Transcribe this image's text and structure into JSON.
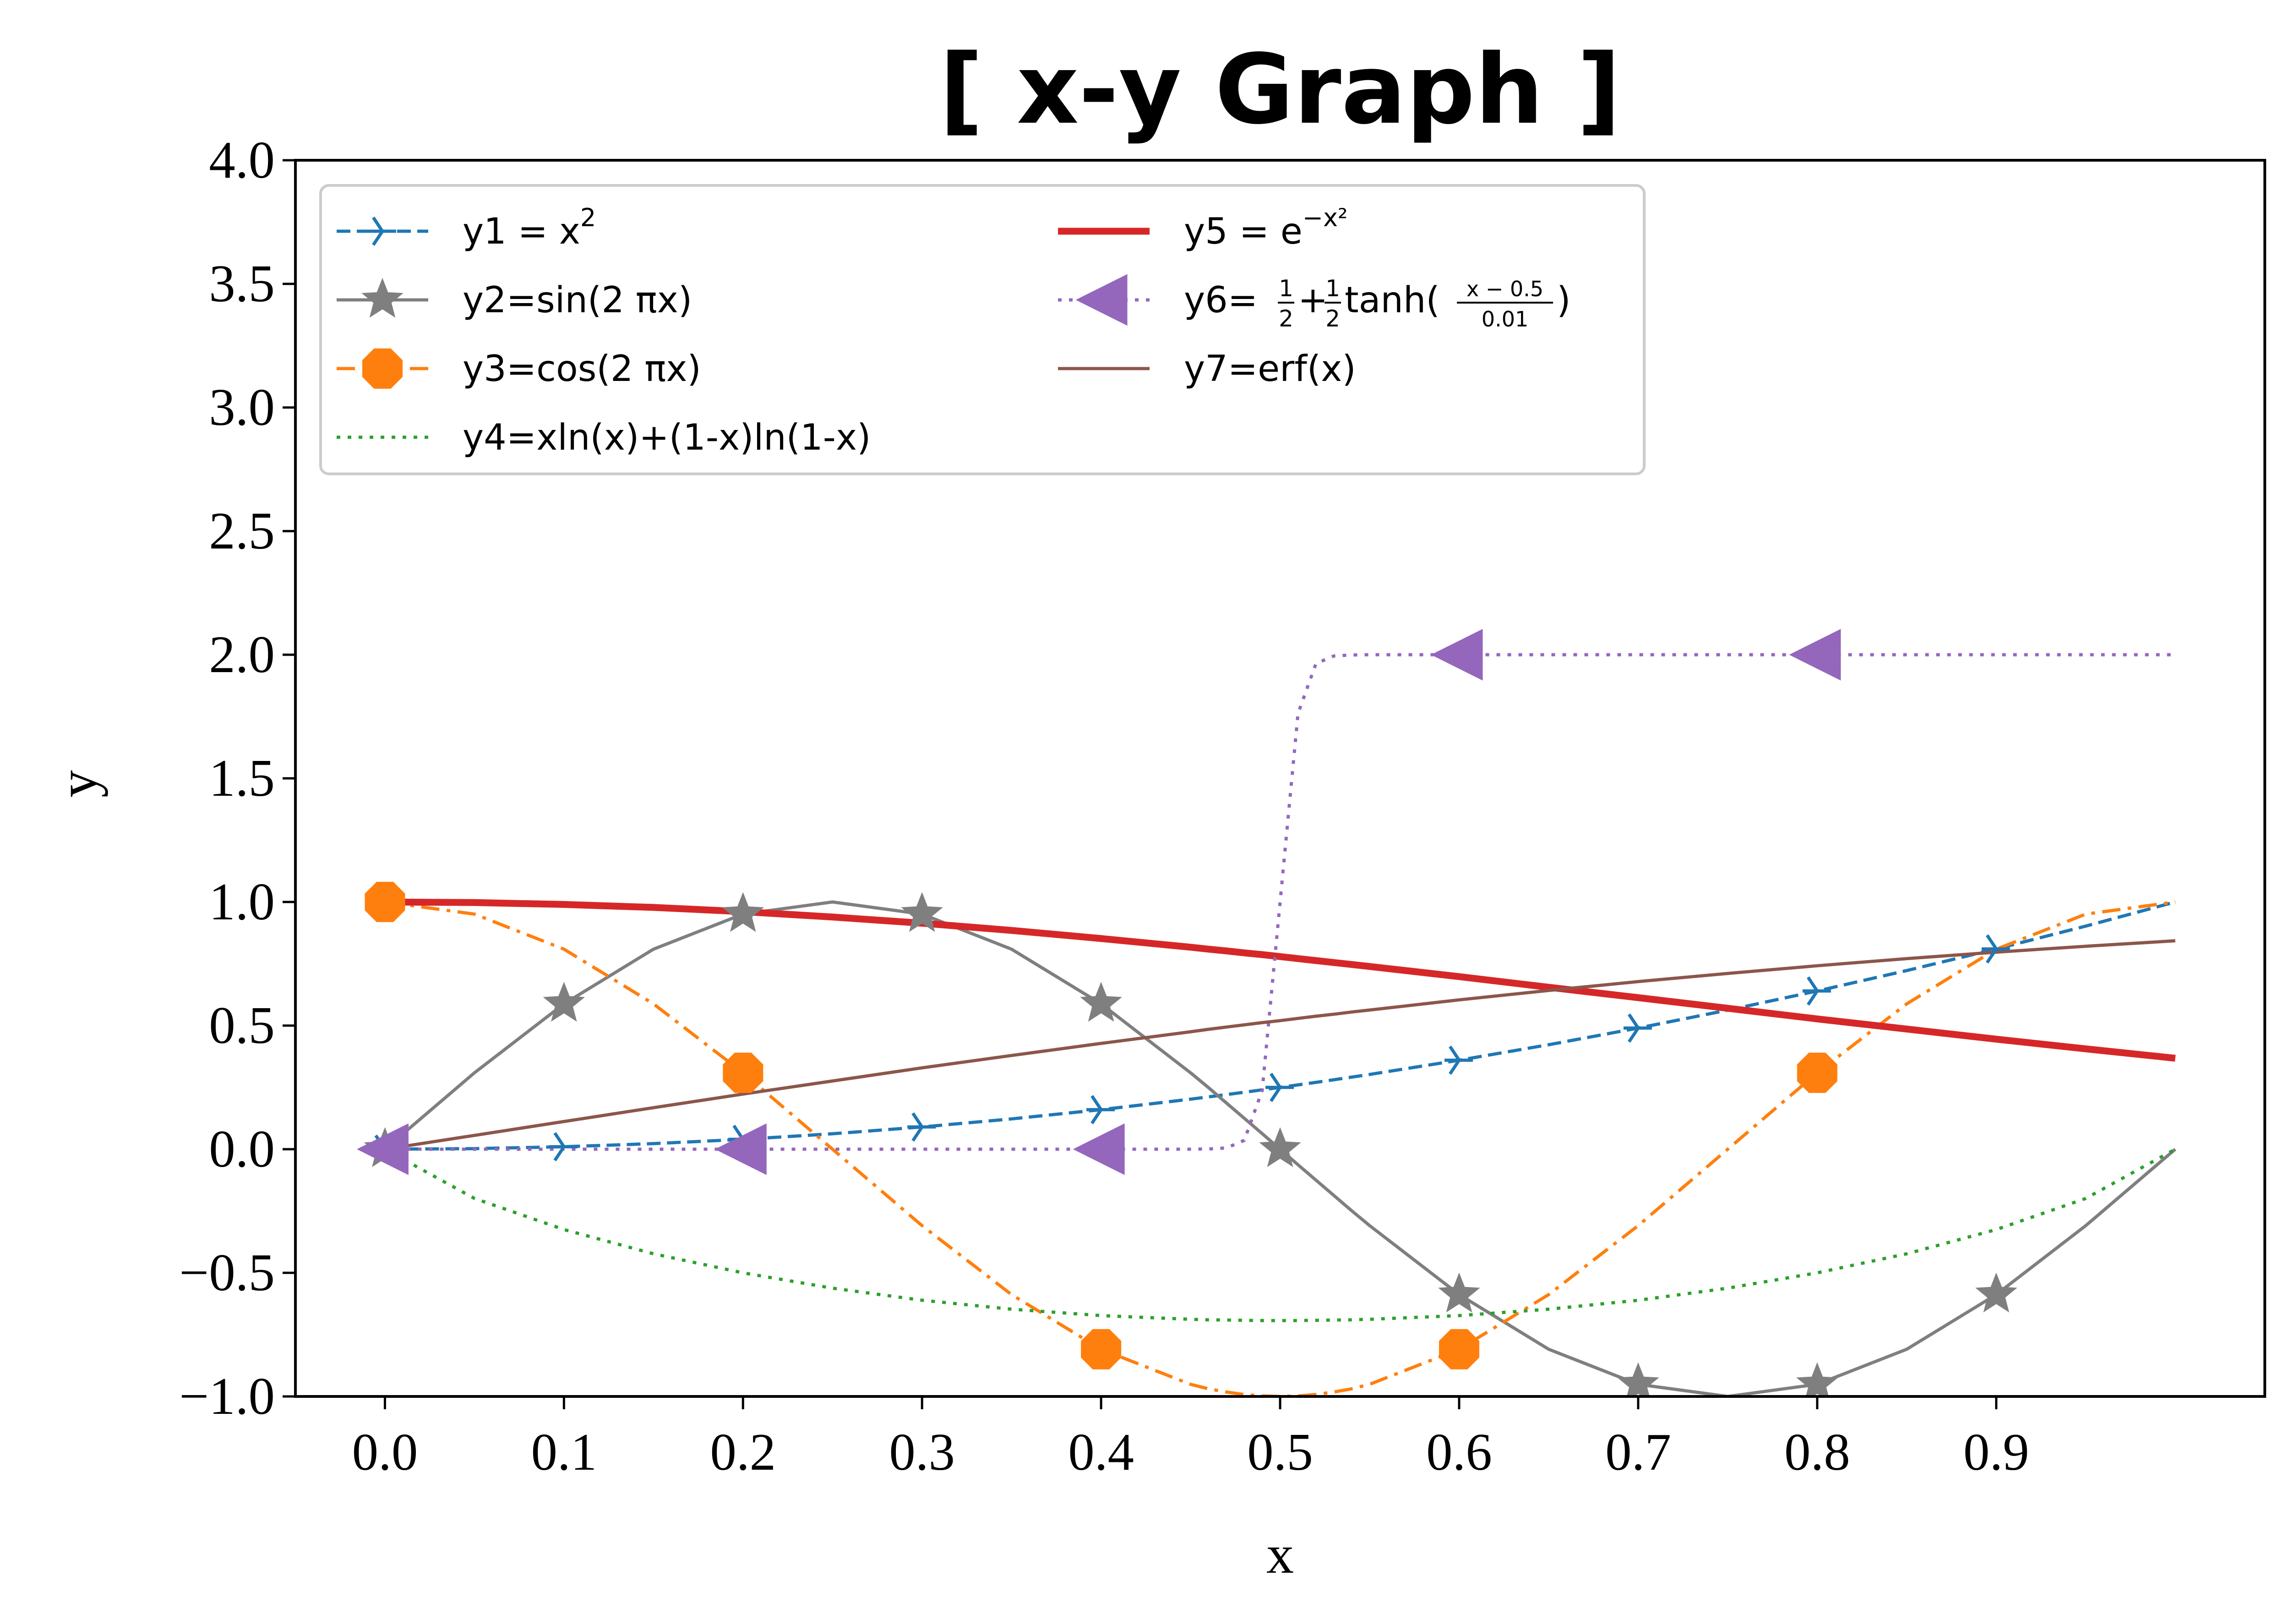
{
  "chart_data": {
    "type": "line",
    "title": "[ x-y Graph ]",
    "xlabel": "x",
    "ylabel": "y",
    "xlim": [
      -0.05,
      1.05
    ],
    "ylim": [
      -1.0,
      4.0
    ],
    "grid": false,
    "legend_placement": "top-left",
    "legend_columns": 2,
    "x_ticks": [
      0.0,
      0.1,
      0.2,
      0.3,
      0.4,
      0.5,
      0.6,
      0.7,
      0.8,
      0.9
    ],
    "x_tick_labels": [
      "0.0",
      "0.1",
      "0.2",
      "0.3",
      "0.4",
      "0.5",
      "0.6",
      "0.7",
      "0.8",
      "0.9"
    ],
    "y_ticks": [
      -1.0,
      -0.5,
      0.0,
      0.5,
      1.0,
      1.5,
      2.0,
      2.5,
      3.0,
      3.5,
      4.0
    ],
    "y_tick_labels": [
      "−1.0",
      "−0.5",
      "0.0",
      "0.5",
      "1.0",
      "1.5",
      "2.0",
      "2.5",
      "3.0",
      "3.5",
      "4.0"
    ],
    "x": [
      0.0,
      0.05,
      0.1,
      0.15,
      0.2,
      0.25,
      0.3,
      0.35,
      0.4,
      0.45,
      0.46,
      0.47,
      0.48,
      0.49,
      0.5,
      0.51,
      0.52,
      0.53,
      0.54,
      0.55,
      0.6,
      0.65,
      0.7,
      0.75,
      0.8,
      0.85,
      0.9,
      0.95,
      1.0
    ],
    "series": [
      {
        "name": "y1 = x",
        "name_superscript": "2",
        "legend_column": 1,
        "color": "#1f77b4",
        "dash": "dashed",
        "marker": "tri-right",
        "values": [
          0.0,
          0.0025,
          0.01,
          0.0225,
          0.04,
          0.0625,
          0.09,
          0.1225,
          0.16,
          0.2025,
          0.2116,
          0.2209,
          0.2304,
          0.2401,
          0.25,
          0.2601,
          0.2704,
          0.2809,
          0.2916,
          0.3025,
          0.36,
          0.4225,
          0.49,
          0.5625,
          0.64,
          0.7225,
          0.81,
          0.9025,
          1.0
        ]
      },
      {
        "name": "y2=sin(2 πx)",
        "legend_column": 1,
        "color": "#7f7f7f",
        "dash": "solid",
        "marker": "star",
        "values": [
          0.0,
          0.309,
          0.588,
          0.809,
          0.951,
          1.0,
          0.951,
          0.809,
          0.588,
          0.309,
          0.249,
          0.187,
          0.125,
          0.063,
          0.0,
          -0.063,
          -0.125,
          -0.187,
          -0.249,
          -0.309,
          -0.588,
          -0.809,
          -0.951,
          -1.0,
          -0.951,
          -0.809,
          -0.588,
          -0.309,
          0.0
        ]
      },
      {
        "name": "y3=cos(2 πx)",
        "legend_column": 1,
        "color": "#ff7f0e",
        "dash": "dashdot",
        "marker": "octagon",
        "values": [
          1.0,
          0.951,
          0.809,
          0.588,
          0.309,
          0.0,
          -0.309,
          -0.588,
          -0.809,
          -0.951,
          -0.969,
          -0.982,
          -0.992,
          -0.998,
          -1.0,
          -0.998,
          -0.992,
          -0.982,
          -0.969,
          -0.951,
          -0.809,
          -0.588,
          -0.309,
          0.0,
          0.309,
          0.588,
          0.809,
          0.951,
          1.0
        ]
      },
      {
        "name": "y4=xln(x)+(1-x)ln(1-x)",
        "legend_column": 1,
        "color": "#2ca02c",
        "dash": "dotted",
        "marker": "none",
        "values": [
          0.0,
          -0.199,
          -0.325,
          -0.423,
          -0.5,
          -0.562,
          -0.611,
          -0.647,
          -0.673,
          -0.688,
          -0.69,
          -0.691,
          -0.692,
          -0.693,
          -0.693,
          -0.693,
          -0.692,
          -0.691,
          -0.69,
          -0.688,
          -0.673,
          -0.647,
          -0.611,
          -0.562,
          -0.5,
          -0.423,
          -0.325,
          -0.199,
          0.0
        ]
      },
      {
        "name": "y5 = e",
        "name_superscript": "−x²",
        "legend_column": 2,
        "color": "#d62728",
        "dash": "solid",
        "marker": "none",
        "thick": true,
        "values": [
          1.0,
          0.9975,
          0.99,
          0.978,
          0.961,
          0.939,
          0.914,
          0.885,
          0.852,
          0.817,
          0.809,
          0.802,
          0.794,
          0.787,
          0.779,
          0.771,
          0.763,
          0.755,
          0.747,
          0.739,
          0.698,
          0.655,
          0.613,
          0.57,
          0.527,
          0.486,
          0.445,
          0.406,
          0.368
        ]
      },
      {
        "name": "y6=",
        "name_suffix": " tanh(",
        "name_fraction_1": [
          "1",
          "2"
        ],
        "name_fraction_2": [
          "1",
          "2"
        ],
        "name_fraction_3": [
          "x − 0.5",
          "0.01"
        ],
        "name_close": ")",
        "legend_column": 2,
        "color": "#9467bd",
        "dash": "dotted",
        "marker": "tri-left",
        "values": [
          0.0,
          0.0,
          0.0,
          0.0,
          0.0,
          0.0,
          0.0,
          0.0,
          0.0,
          0.0,
          0.001,
          0.005,
          0.036,
          0.238,
          1.0,
          1.762,
          1.964,
          1.995,
          1.999,
          2.0,
          2.0,
          2.0,
          2.0,
          2.0,
          2.0,
          2.0,
          2.0,
          2.0,
          2.0
        ]
      },
      {
        "name": "y7=erf(x)",
        "legend_column": 2,
        "color": "#8c564b",
        "dash": "solid",
        "marker": "none",
        "values": [
          0.0,
          0.056,
          0.112,
          0.168,
          0.223,
          0.276,
          0.329,
          0.379,
          0.428,
          0.475,
          0.485,
          0.494,
          0.503,
          0.512,
          0.52,
          0.529,
          0.538,
          0.546,
          0.555,
          0.563,
          0.604,
          0.642,
          0.678,
          0.711,
          0.742,
          0.771,
          0.797,
          0.821,
          0.843
        ]
      }
    ],
    "markers": {
      "y1 = x": [
        [
          0.0,
          0.0
        ],
        [
          0.1,
          0.01
        ],
        [
          0.2,
          0.04
        ],
        [
          0.3,
          0.09
        ],
        [
          0.4,
          0.16
        ],
        [
          0.5,
          0.25
        ],
        [
          0.6,
          0.36
        ],
        [
          0.7,
          0.49
        ],
        [
          0.8,
          0.64
        ],
        [
          0.9,
          0.81
        ]
      ],
      "y2=sin(2 πx)": [
        [
          0.0,
          0.0
        ],
        [
          0.1,
          0.588
        ],
        [
          0.2,
          0.951
        ],
        [
          0.3,
          0.951
        ],
        [
          0.4,
          0.588
        ],
        [
          0.5,
          0.0
        ],
        [
          0.6,
          -0.588
        ],
        [
          0.7,
          -0.951
        ],
        [
          0.8,
          -0.951
        ],
        [
          0.9,
          -0.588
        ]
      ],
      "y3=cos(2 πx)": [
        [
          0.0,
          1.0
        ],
        [
          0.2,
          0.309
        ],
        [
          0.4,
          -0.809
        ],
        [
          0.6,
          -0.809
        ],
        [
          0.8,
          0.309
        ]
      ],
      "y6=": [
        [
          0.0,
          0.0
        ],
        [
          0.2,
          0.0
        ],
        [
          0.4,
          0.0
        ],
        [
          0.6,
          2.0
        ],
        [
          0.8,
          2.0
        ]
      ]
    }
  }
}
